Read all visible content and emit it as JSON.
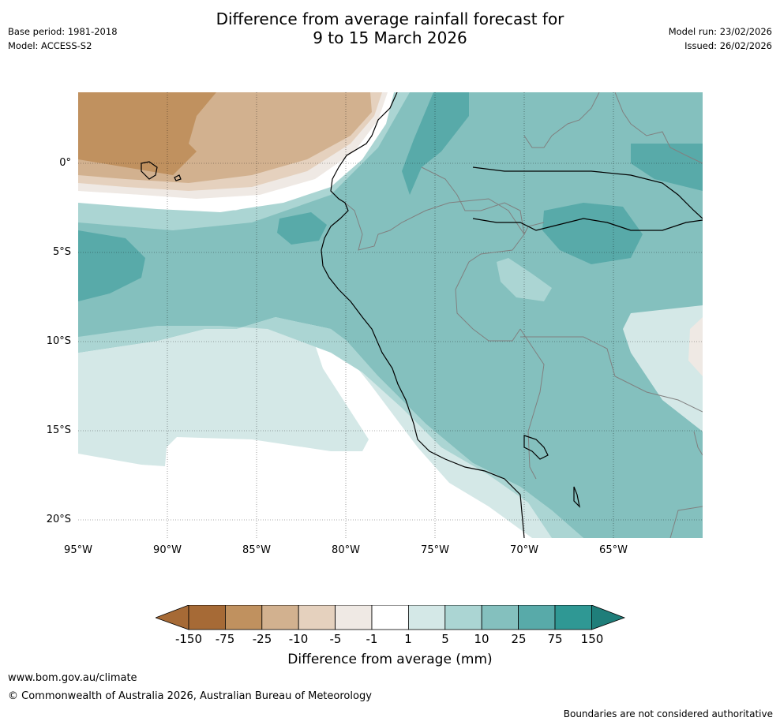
{
  "header": {
    "title_line1": "Difference from average rainfall forecast for",
    "title_line2": "9 to 15 March 2026",
    "base_period": "Base period: 1981-2018",
    "model": "Model: ACCESS-S2",
    "model_run": "Model run: 23/02/2026",
    "issued": "Issued: 26/02/2026"
  },
  "map": {
    "region": "Western South America and Eastern Pacific",
    "lat_labels": [
      "0°",
      "5°S",
      "10°S",
      "15°S",
      "20°S"
    ],
    "lon_labels": [
      "95°W",
      "90°W",
      "85°W",
      "80°W",
      "75°W",
      "70°W",
      "65°W"
    ],
    "colors": {
      "c_neg150": "#a66a36",
      "c_neg75": "#c0915f",
      "c_neg25": "#d2b18f",
      "c_neg10": "#e5d1be",
      "c_neg5": "#efe9e4",
      "c_neg1": "#ffffff",
      "c_1": "#d4e8e7",
      "c_5": "#abd5d3",
      "c_10": "#84c0be",
      "c_25": "#58aaa9",
      "c_75": "#2f9894",
      "c_150": "#1f7e7a"
    }
  },
  "colorbar": {
    "ticks": [
      "-150",
      "-75",
      "-25",
      "-10",
      "-5",
      "-1",
      "1",
      "5",
      "10",
      "25",
      "75",
      "150"
    ],
    "label": "Difference from average (mm)"
  },
  "footer": {
    "website": "www.bom.gov.au/climate",
    "copyright": "© Commonwealth of Australia 2026, Australian Bureau of Meteorology",
    "disclaimer": "Boundaries are not considered authoritative"
  }
}
